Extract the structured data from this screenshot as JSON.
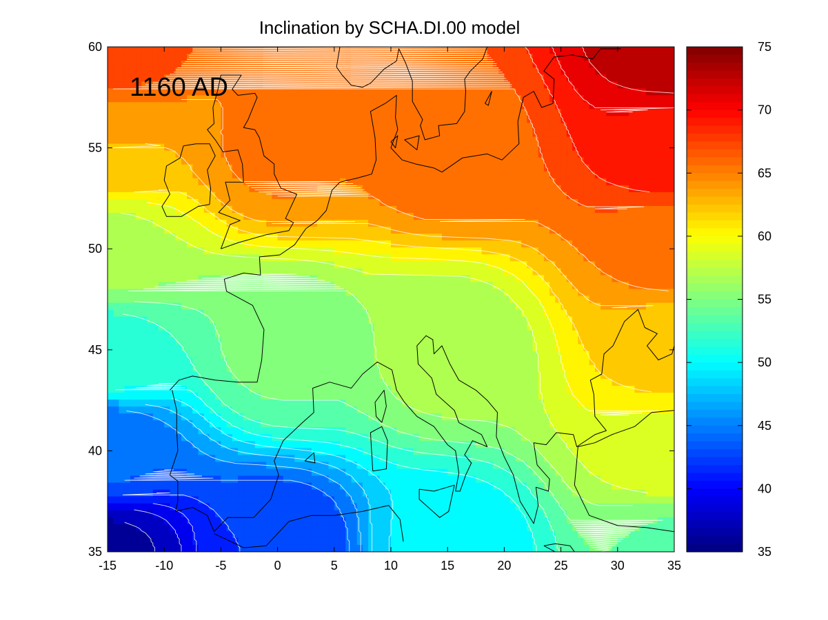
{
  "chart_data": {
    "type": "heatmap",
    "subtype": "filled-contour-map",
    "title": "Inclination by SCHA.DI.00 model",
    "annotation": "1160 AD",
    "xlabel": "",
    "ylabel": "",
    "xlim": [
      -15,
      35
    ],
    "ylim": [
      35,
      60
    ],
    "x_ticks": [
      "-15",
      "-10",
      "-5",
      "0",
      "5",
      "10",
      "15",
      "20",
      "25",
      "30",
      "35"
    ],
    "y_ticks": [
      "35",
      "40",
      "45",
      "50",
      "55",
      "60"
    ],
    "colorbar": {
      "colormap": "jet",
      "clim": [
        35,
        75
      ],
      "ticks": [
        "35",
        "40",
        "45",
        "50",
        "55",
        "60",
        "65",
        "70",
        "75"
      ]
    },
    "contour_interval": 1.75,
    "contour_line_color": "#ffffff",
    "coastline_color": "#000000",
    "field_samples": [
      {
        "lon": -15,
        "lat": 35,
        "value": 36.4
      },
      {
        "lon": -15,
        "lat": 40,
        "value": 44.0
      },
      {
        "lon": -15,
        "lat": 45,
        "value": 52.0
      },
      {
        "lon": -15,
        "lat": 50,
        "value": 57.2
      },
      {
        "lon": -15,
        "lat": 55,
        "value": 63.0
      },
      {
        "lon": -15,
        "lat": 60,
        "value": 67.5
      },
      {
        "lon": 0,
        "lat": 35,
        "value": 42.0
      },
      {
        "lon": 0,
        "lat": 45,
        "value": 54.5
      },
      {
        "lon": 0,
        "lat": 55,
        "value": 65.0
      },
      {
        "lon": 15,
        "lat": 35,
        "value": 49.5
      },
      {
        "lon": 15,
        "lat": 45,
        "value": 56.5
      },
      {
        "lon": 15,
        "lat": 55,
        "value": 66.0
      },
      {
        "lon": 35,
        "lat": 35,
        "value": 54.0
      },
      {
        "lon": 35,
        "lat": 40,
        "value": 59.0
      },
      {
        "lon": 35,
        "lat": 45,
        "value": 62.0
      },
      {
        "lon": 35,
        "lat": 50,
        "value": 65.5
      },
      {
        "lon": 35,
        "lat": 55,
        "value": 69.5
      },
      {
        "lon": 35,
        "lat": 60,
        "value": 73.0
      }
    ],
    "coastlines": [
      [
        [
          -9.5,
          43.0
        ],
        [
          -8.7,
          43.5
        ],
        [
          -7.5,
          43.7
        ],
        [
          -5.5,
          43.5
        ],
        [
          -3.5,
          43.4
        ],
        [
          -1.8,
          43.4
        ],
        [
          -1.4,
          44.5
        ],
        [
          -1.2,
          46.0
        ],
        [
          -2.2,
          47.2
        ],
        [
          -4.5,
          47.9
        ],
        [
          -4.7,
          48.5
        ],
        [
          -3.0,
          48.8
        ],
        [
          -1.5,
          48.7
        ],
        [
          -1.6,
          49.6
        ],
        [
          0.2,
          49.7
        ],
        [
          1.5,
          50.2
        ],
        [
          2.5,
          51.0
        ],
        [
          3.5,
          51.4
        ],
        [
          4.3,
          51.9
        ],
        [
          4.8,
          52.9
        ],
        [
          5.5,
          53.3
        ],
        [
          7.0,
          53.5
        ],
        [
          8.3,
          53.7
        ],
        [
          8.7,
          54.4
        ],
        [
          8.6,
          55.5
        ],
        [
          8.2,
          56.8
        ],
        [
          9.5,
          57.2
        ],
        [
          10.5,
          57.6
        ],
        [
          10.4,
          56.5
        ],
        [
          10.6,
          55.9
        ],
        [
          10.0,
          55.0
        ],
        [
          11.0,
          54.4
        ],
        [
          12.2,
          54.2
        ],
        [
          13.8,
          54.0
        ],
        [
          14.5,
          53.8
        ],
        [
          16.3,
          54.5
        ],
        [
          18.5,
          54.7
        ],
        [
          19.8,
          54.4
        ],
        [
          21.3,
          55.2
        ],
        [
          21.2,
          56.3
        ],
        [
          21.7,
          57.5
        ],
        [
          22.6,
          57.8
        ],
        [
          23.3,
          57.0
        ],
        [
          24.3,
          57.2
        ],
        [
          24.4,
          58.4
        ],
        [
          23.5,
          58.8
        ],
        [
          24.4,
          59.5
        ],
        [
          26.0,
          59.6
        ],
        [
          27.8,
          59.4
        ],
        [
          28.5,
          59.9
        ],
        [
          30.3,
          59.9
        ]
      ],
      [
        [
          5.5,
          60.0
        ],
        [
          5.2,
          59.0
        ],
        [
          5.7,
          58.6
        ],
        [
          6.5,
          58.1
        ],
        [
          7.5,
          58.0
        ],
        [
          8.2,
          58.2
        ],
        [
          9.4,
          58.9
        ],
        [
          10.5,
          59.3
        ],
        [
          10.7,
          59.9
        ],
        [
          11.3,
          59.2
        ],
        [
          11.9,
          58.3
        ],
        [
          11.9,
          57.3
        ],
        [
          12.8,
          56.4
        ],
        [
          12.6,
          56.1
        ],
        [
          13.0,
          55.4
        ],
        [
          14.3,
          55.6
        ],
        [
          14.2,
          56.1
        ],
        [
          15.8,
          56.2
        ],
        [
          16.5,
          56.8
        ],
        [
          16.6,
          57.8
        ],
        [
          16.5,
          58.4
        ],
        [
          17.0,
          58.8
        ],
        [
          18.1,
          59.4
        ],
        [
          18.5,
          60.0
        ]
      ],
      [
        [
          -9.3,
          43.0
        ],
        [
          -8.9,
          42.0
        ],
        [
          -8.9,
          41.0
        ],
        [
          -8.8,
          40.0
        ],
        [
          -9.5,
          38.8
        ],
        [
          -8.8,
          38.5
        ],
        [
          -8.8,
          37.5
        ],
        [
          -9.0,
          37.0
        ],
        [
          -7.5,
          37.2
        ],
        [
          -6.2,
          36.8
        ],
        [
          -5.6,
          36.0
        ],
        [
          -4.4,
          36.7
        ],
        [
          -2.1,
          36.7
        ],
        [
          -0.6,
          37.6
        ],
        [
          0.1,
          38.8
        ],
        [
          -0.3,
          39.5
        ],
        [
          0.5,
          40.5
        ],
        [
          2.2,
          41.4
        ],
        [
          3.2,
          41.9
        ],
        [
          3.1,
          43.1
        ],
        [
          4.6,
          43.4
        ],
        [
          6.5,
          43.1
        ],
        [
          7.5,
          43.8
        ],
        [
          8.8,
          44.4
        ],
        [
          10.1,
          44.0
        ],
        [
          10.5,
          43.0
        ],
        [
          11.2,
          42.4
        ],
        [
          12.3,
          41.7
        ],
        [
          13.8,
          41.2
        ],
        [
          15.0,
          40.3
        ],
        [
          15.7,
          40.0
        ],
        [
          16.0,
          38.9
        ],
        [
          15.7,
          38.0
        ],
        [
          16.1,
          38.0
        ],
        [
          16.6,
          38.8
        ],
        [
          17.1,
          39.4
        ],
        [
          16.5,
          39.8
        ],
        [
          17.2,
          40.5
        ],
        [
          18.5,
          40.2
        ],
        [
          18.0,
          40.8
        ],
        [
          16.0,
          41.4
        ],
        [
          15.6,
          42.0
        ],
        [
          14.0,
          42.8
        ],
        [
          13.6,
          43.6
        ],
        [
          12.4,
          44.3
        ],
        [
          12.3,
          45.2
        ],
        [
          13.1,
          45.7
        ],
        [
          13.7,
          45.5
        ],
        [
          13.8,
          44.8
        ],
        [
          14.5,
          45.2
        ],
        [
          15.2,
          44.3
        ],
        [
          16.0,
          43.5
        ],
        [
          17.5,
          43.0
        ],
        [
          18.5,
          42.5
        ],
        [
          19.4,
          41.9
        ],
        [
          19.3,
          40.7
        ],
        [
          20.0,
          39.7
        ],
        [
          20.8,
          38.8
        ],
        [
          21.4,
          37.5
        ],
        [
          22.6,
          36.4
        ],
        [
          23.0,
          37.3
        ],
        [
          22.8,
          38.2
        ],
        [
          23.9,
          38.0
        ],
        [
          24.0,
          38.6
        ],
        [
          22.9,
          39.3
        ],
        [
          22.6,
          40.4
        ],
        [
          23.7,
          40.3
        ],
        [
          24.6,
          40.9
        ],
        [
          26.1,
          40.8
        ],
        [
          26.4,
          40.2
        ],
        [
          28.0,
          40.8
        ],
        [
          29.0,
          41.0
        ],
        [
          28.0,
          41.7
        ],
        [
          27.9,
          42.8
        ],
        [
          27.6,
          43.5
        ],
        [
          28.6,
          43.8
        ],
        [
          28.8,
          44.8
        ],
        [
          29.6,
          45.2
        ],
        [
          30.6,
          46.4
        ],
        [
          31.2,
          46.7
        ],
        [
          31.8,
          47.0
        ],
        [
          32.4,
          46.1
        ],
        [
          33.5,
          45.8
        ],
        [
          32.6,
          45.2
        ],
        [
          33.6,
          44.5
        ],
        [
          34.8,
          44.8
        ],
        [
          35.0,
          45.2
        ]
      ],
      [
        [
          26.5,
          40.2
        ],
        [
          28.0,
          40.4
        ],
        [
          29.5,
          40.8
        ],
        [
          31.5,
          41.2
        ],
        [
          33.0,
          41.9
        ],
        [
          35.0,
          42.0
        ]
      ],
      [
        [
          35.0,
          36.0
        ],
        [
          32.5,
          36.2
        ],
        [
          30.0,
          36.3
        ],
        [
          27.5,
          36.8
        ],
        [
          26.2,
          38.3
        ],
        [
          26.4,
          39.5
        ],
        [
          26.5,
          40.2
        ]
      ],
      [
        [
          -5.6,
          35.9
        ],
        [
          -3.0,
          35.2
        ],
        [
          -1.0,
          35.3
        ],
        [
          1.0,
          36.5
        ],
        [
          3.0,
          36.8
        ],
        [
          5.0,
          36.8
        ],
        [
          7.5,
          37.0
        ],
        [
          9.8,
          37.3
        ],
        [
          10.8,
          36.6
        ],
        [
          11.1,
          35.5
        ]
      ],
      [
        [
          -6.0,
          52.2
        ],
        [
          -5.9,
          53.0
        ],
        [
          -6.2,
          53.9
        ],
        [
          -5.5,
          54.6
        ],
        [
          -6.0,
          55.2
        ],
        [
          -7.2,
          55.2
        ],
        [
          -8.3,
          55.1
        ],
        [
          -8.6,
          54.5
        ],
        [
          -9.8,
          54.1
        ],
        [
          -10.0,
          53.4
        ],
        [
          -9.5,
          52.7
        ],
        [
          -10.2,
          52.1
        ],
        [
          -9.8,
          51.6
        ],
        [
          -8.5,
          51.6
        ],
        [
          -7.0,
          52.1
        ],
        [
          -6.0,
          52.2
        ]
      ],
      [
        [
          -5.0,
          50.0
        ],
        [
          -3.5,
          50.3
        ],
        [
          -1.0,
          50.7
        ],
        [
          1.0,
          50.9
        ],
        [
          1.4,
          51.3
        ],
        [
          0.7,
          51.5
        ],
        [
          1.7,
          52.7
        ],
        [
          0.3,
          53.0
        ],
        [
          -0.3,
          53.7
        ],
        [
          -0.3,
          54.2
        ],
        [
          -1.2,
          54.6
        ],
        [
          -1.6,
          55.5
        ],
        [
          -2.0,
          55.9
        ],
        [
          -3.0,
          56.0
        ],
        [
          -2.6,
          56.4
        ],
        [
          -1.8,
          57.5
        ],
        [
          -2.0,
          57.7
        ],
        [
          -3.5,
          57.6
        ],
        [
          -4.0,
          57.9
        ],
        [
          -3.2,
          58.6
        ],
        [
          -5.0,
          58.6
        ],
        [
          -5.3,
          57.8
        ],
        [
          -5.7,
          57.0
        ],
        [
          -5.6,
          56.2
        ],
        [
          -6.2,
          55.9
        ],
        [
          -5.5,
          55.4
        ],
        [
          -4.8,
          54.8
        ],
        [
          -3.5,
          54.9
        ],
        [
          -3.1,
          54.2
        ],
        [
          -3.0,
          53.3
        ],
        [
          -4.6,
          53.3
        ],
        [
          -4.2,
          52.4
        ],
        [
          -5.2,
          51.8
        ],
        [
          -3.3,
          51.4
        ],
        [
          -4.2,
          51.2
        ],
        [
          -5.0,
          50.0
        ]
      ],
      [
        [
          9.2,
          41.4
        ],
        [
          9.6,
          42.2
        ],
        [
          9.4,
          43.0
        ],
        [
          8.6,
          42.4
        ],
        [
          8.7,
          41.7
        ],
        [
          9.2,
          41.4
        ]
      ],
      [
        [
          8.4,
          39.0
        ],
        [
          9.6,
          39.1
        ],
        [
          9.7,
          40.5
        ],
        [
          9.2,
          41.2
        ],
        [
          8.2,
          40.9
        ],
        [
          8.4,
          39.0
        ]
      ],
      [
        [
          12.5,
          38.1
        ],
        [
          13.8,
          38.0
        ],
        [
          15.6,
          38.3
        ],
        [
          15.1,
          37.0
        ],
        [
          14.3,
          36.7
        ],
        [
          12.5,
          37.6
        ],
        [
          12.5,
          38.1
        ]
      ],
      [
        [
          23.5,
          35.3
        ],
        [
          24.5,
          35.4
        ],
        [
          25.8,
          35.3
        ],
        [
          26.2,
          35.0
        ],
        [
          24.8,
          34.9
        ],
        [
          23.5,
          35.3
        ]
      ],
      [
        [
          2.4,
          39.5
        ],
        [
          3.2,
          39.9
        ],
        [
          3.3,
          39.4
        ],
        [
          2.4,
          39.5
        ]
      ],
      [
        [
          10.0,
          55.3
        ],
        [
          10.6,
          55.6
        ],
        [
          10.4,
          55.0
        ],
        [
          10.0,
          55.3
        ]
      ],
      [
        [
          11.2,
          55.4
        ],
        [
          12.5,
          55.6
        ],
        [
          12.3,
          54.9
        ],
        [
          11.2,
          55.4
        ]
      ],
      [
        [
          18.3,
          57.2
        ],
        [
          18.9,
          57.8
        ],
        [
          18.6,
          57.1
        ],
        [
          18.3,
          57.2
        ]
      ]
    ]
  }
}
